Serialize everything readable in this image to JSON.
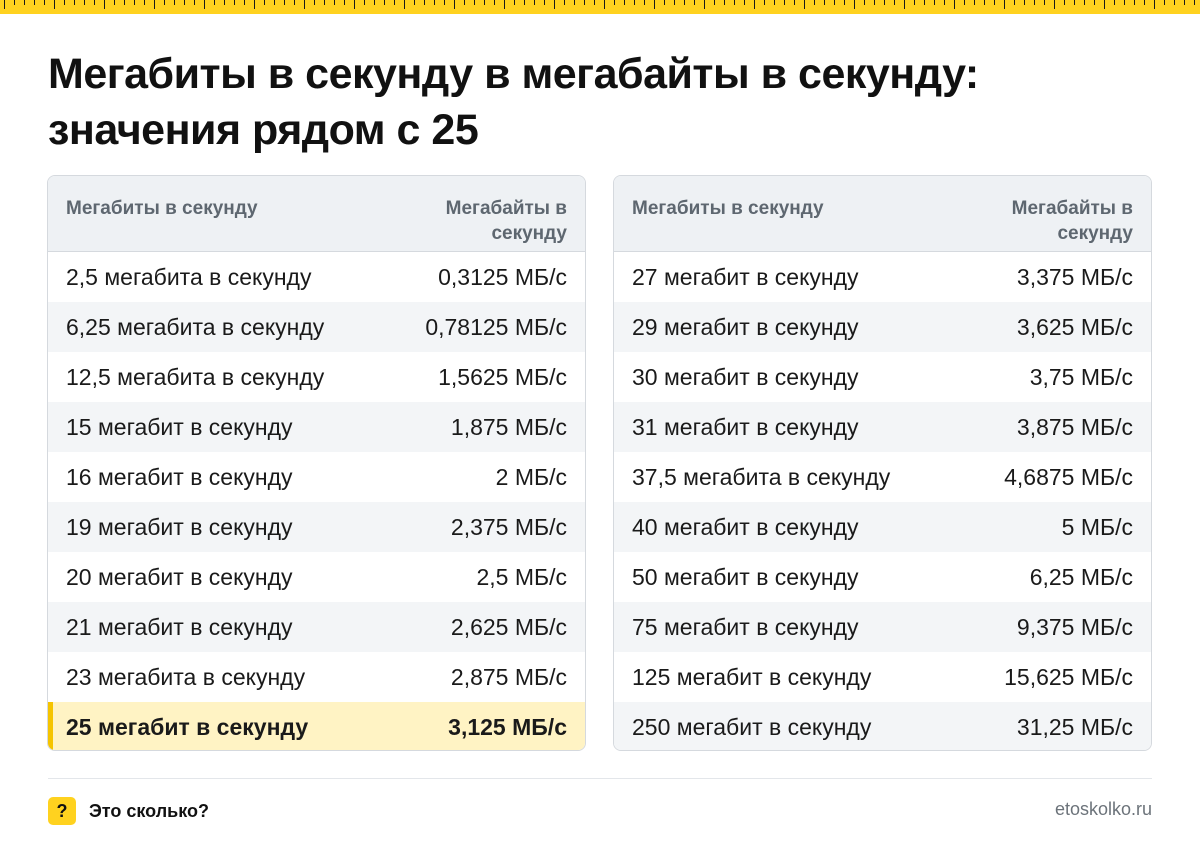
{
  "title": "Мегабиты в секунду в мегабайты в секунду: значения рядом с 25",
  "tables": [
    {
      "header_left": "Мегабиты в секунду",
      "header_right": "Мегабайты в секунду",
      "rows": [
        {
          "label": "2,5 мегабита в секунду",
          "value": "0,3125 МБ/с"
        },
        {
          "label": "6,25 мегабита в секунду",
          "value": "0,78125 МБ/с"
        },
        {
          "label": "12,5 мегабита в секунду",
          "value": "1,5625 МБ/с"
        },
        {
          "label": "15 мегабит в секунду",
          "value": "1,875 МБ/с"
        },
        {
          "label": "16 мегабит в секунду",
          "value": "2 МБ/с"
        },
        {
          "label": "19 мегабит в секунду",
          "value": "2,375 МБ/с"
        },
        {
          "label": "20 мегабит в секунду",
          "value": "2,5 МБ/с"
        },
        {
          "label": "21 мегабит в секунду",
          "value": "2,625 МБ/с"
        },
        {
          "label": "23 мегабита в секунду",
          "value": "2,875 МБ/с"
        },
        {
          "label": "25 мегабит в секунду",
          "value": "3,125 МБ/с"
        }
      ]
    },
    {
      "header_left": "Мегабиты в секунду",
      "header_right": "Мегабайты в секунду",
      "rows": [
        {
          "label": "27 мегабит в секунду",
          "value": "3,375 МБ/с"
        },
        {
          "label": "29 мегабит в секунду",
          "value": "3,625 МБ/с"
        },
        {
          "label": "30 мегабит в секунду",
          "value": "3,75 МБ/с"
        },
        {
          "label": "31 мегабит в секунду",
          "value": "3,875 МБ/с"
        },
        {
          "label": "37,5 мегабита в секунду",
          "value": "4,6875 МБ/с"
        },
        {
          "label": "40 мегабит в секунду",
          "value": "5 МБ/с"
        },
        {
          "label": "50 мегабит в секунду",
          "value": "6,25 МБ/с"
        },
        {
          "label": "75 мегабит в секунду",
          "value": "9,375 МБ/с"
        },
        {
          "label": "125 мегабит в секунду",
          "value": "15,625 МБ/с"
        },
        {
          "label": "250 мегабит в секунду",
          "value": "31,25 МБ/с"
        }
      ]
    }
  ],
  "highlighted_row": "25 мегабит в секунду",
  "footer": {
    "badge_glyph": "?",
    "brand": "Это сколько?",
    "site": "etoskolko.ru"
  },
  "colors": {
    "accent": "#ffd21f",
    "highlight_bg": "#fff3c4",
    "highlight_bar": "#f5c400",
    "header_bg": "#eef1f4",
    "stripe_bg": "#f3f5f7"
  }
}
